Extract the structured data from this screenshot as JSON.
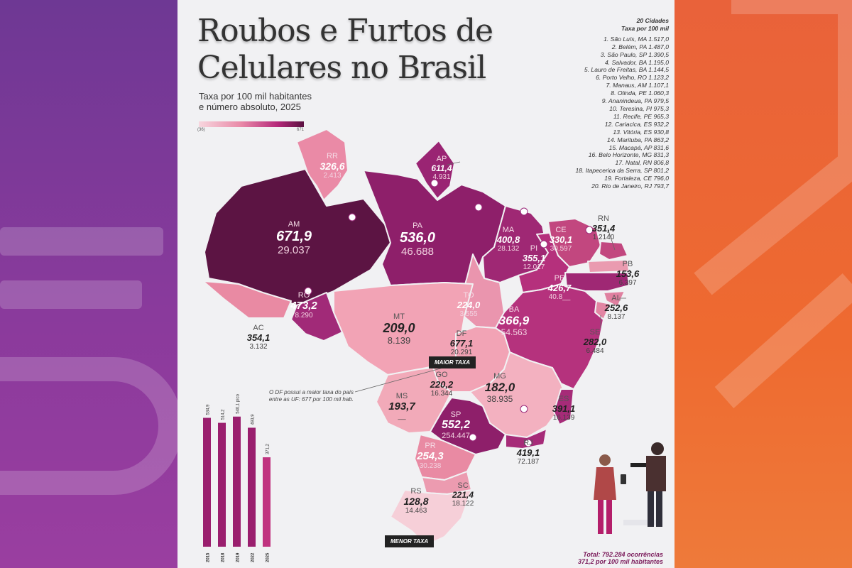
{
  "title_line1": "Roubos e Furtos de",
  "title_line2": "Celulares no Brasil",
  "subtitle_line1": "Taxa por 100 mil habitantes",
  "subtitle_line2": "e número absoluto, 2025",
  "scale_min": "(36)",
  "scale_max": "671",
  "ranking": {
    "header_line1": "20 Cidades",
    "header_line2": "Taxa por 100 mil",
    "items": [
      "1. São Luís, MA 1.517,0",
      "2. Belém, PA 1.487,0",
      "3. São Paulo, SP 1.390,5",
      "4. Salvador, BA 1.195,0",
      "5. Lauro de Freitas, BA 1.144,5",
      "6. Porto Velho, RO 1.123,2",
      "7. Manaus, AM 1.107,1",
      "8. Olinda, PE 1.060,3",
      "9. Ananindeua, PA 979,5",
      "10. Teresina, PI 975,3",
      "11. Recife, PE 965,3",
      "12. Cariacica, ES 932,2",
      "13. Vitória, ES 930,8",
      "14. Marituba, PA 863,2",
      "15. Macapá, AP 831,6",
      "16. Belo Horizonte, MG 831,3",
      "17. Natal, RN 806,8",
      "18. Itapecerica da Serra, SP 801,2",
      "19. Fortaleza, CE 796,0",
      "20. Rio de Janeiro, RJ 793,7"
    ]
  },
  "states": [
    {
      "uf": "RR",
      "rate": "326,6",
      "abs": "2.413"
    },
    {
      "uf": "AP",
      "rate": "611,4",
      "abs": "4.931"
    },
    {
      "uf": "AM",
      "rate": "671,9",
      "abs": "29.037"
    },
    {
      "uf": "PA",
      "rate": "536,0",
      "abs": "46.688"
    },
    {
      "uf": "MA",
      "rate": "400,8",
      "abs": "28.132"
    },
    {
      "uf": "CE",
      "rate": "330,1",
      "abs": "30.597"
    },
    {
      "uf": "RN",
      "rate": "351,4",
      "abs": "1.2140"
    },
    {
      "uf": "PB",
      "rate": "153,6",
      "abs": "6.397"
    },
    {
      "uf": "PI",
      "rate": "355,1",
      "abs": "12.017"
    },
    {
      "uf": "PE",
      "rate": "426,7",
      "abs": "40.8__"
    },
    {
      "uf": "AL",
      "rate": "252,6",
      "abs": "8.137"
    },
    {
      "uf": "SE",
      "rate": "282,0",
      "abs": "6.484"
    },
    {
      "uf": "AC",
      "rate": "354,1",
      "abs": "3.132"
    },
    {
      "uf": "RO",
      "rate": "473,2",
      "abs": "8.290"
    },
    {
      "uf": "TO",
      "rate": "224,0",
      "abs": "3.555"
    },
    {
      "uf": "MT",
      "rate": "209,0",
      "abs": "8.139"
    },
    {
      "uf": "BA",
      "rate": "366,9",
      "abs": "54.563"
    },
    {
      "uf": "DF",
      "rate": "677,1",
      "abs": "20.291"
    },
    {
      "uf": "GO",
      "rate": "220,2",
      "abs": "16.344"
    },
    {
      "uf": "MG",
      "rate": "182,0",
      "abs": "38.935"
    },
    {
      "uf": "MS",
      "rate": "193,7",
      "abs": "__"
    },
    {
      "uf": "ES",
      "rate": "391,1",
      "abs": "16.139"
    },
    {
      "uf": "SP",
      "rate": "552,2",
      "abs": "254.447"
    },
    {
      "uf": "RJ",
      "rate": "419,1",
      "abs": "72.187"
    },
    {
      "uf": "PR",
      "rate": "254,3",
      "abs": "30.238"
    },
    {
      "uf": "SC",
      "rate": "221,4",
      "abs": "18.122"
    },
    {
      "uf": "RS",
      "rate": "128,8",
      "abs": "14.463"
    }
  ],
  "tag_max": "MAIOR TAXA",
  "tag_min": "MENOR TAXA",
  "note_df": "O DF possui a maior taxa do país entre as UF: 677 por 100 mil hab.",
  "bar_chart": {
    "years": [
      "2015",
      "2018",
      "2019",
      "2022",
      "2025"
    ],
    "values": [
      534.9,
      514.2,
      540.1,
      493.9,
      371.2
    ],
    "value_labels": [
      "534,9",
      "514,2",
      "540,1 pico",
      "493,9",
      "371,2"
    ]
  },
  "total_line1": "Total: 792.284 ocorrências",
  "total_line2": "371,2 por 100 mil habitantes",
  "colors": {
    "max": "#5c1443",
    "high": "#8e1f6a",
    "mid": "#b8347e",
    "low": "#e18aa3",
    "min": "#f3c9d3"
  }
}
